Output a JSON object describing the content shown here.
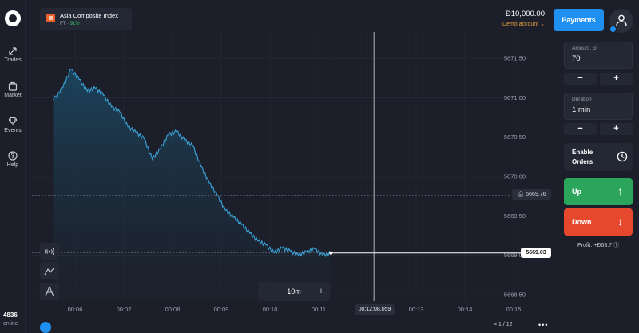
{
  "asset": {
    "name": "Asia Composite Index",
    "type": "FT",
    "payout": "91%"
  },
  "account": {
    "balance": "Đ10,000.00",
    "label": "Demo account",
    "payments_label": "Payments"
  },
  "nav": [
    {
      "label": "Trades",
      "icon": "trades-icon"
    },
    {
      "label": "Market",
      "icon": "market-icon"
    },
    {
      "label": "Events",
      "icon": "trophy-icon"
    },
    {
      "label": "Help",
      "icon": "help-icon"
    }
  ],
  "online": {
    "count": "4836",
    "label": "online"
  },
  "trade_panel": {
    "amount_label": "Amount, Đ",
    "amount_value": "70",
    "duration_label": "Duration",
    "duration_value": "1 min",
    "minus": "−",
    "plus": "+",
    "enable_orders_line1": "Enable",
    "enable_orders_line2": "Orders",
    "up_label": "Up",
    "down_label": "Down",
    "profit": "Profit: +Đ63.7"
  },
  "timeframe": {
    "value": "10m",
    "minus": "−",
    "plus": "+"
  },
  "markers": {
    "alert_price": "5669.76",
    "current_price": "5669.03",
    "cursor_time": "00:12:08.059"
  },
  "pager": {
    "value": "1 / 12"
  },
  "colors": {
    "accent": "#1f8ff0",
    "up": "#2ba55b",
    "down": "#e5482d",
    "line": "#3aa2d8",
    "demo": "#e8a23a"
  },
  "chart_data": {
    "type": "area",
    "series": [
      {
        "values": [
          [
            "00:05:33",
            5670.97
          ],
          [
            "00:05:45",
            5671.13
          ],
          [
            "00:05:55",
            5671.36
          ],
          [
            "00:06:05",
            5671.23
          ],
          [
            "00:06:15",
            5671.08
          ],
          [
            "00:06:25",
            5671.12
          ],
          [
            "00:06:35",
            5671.03
          ],
          [
            "00:06:45",
            5670.88
          ],
          [
            "00:06:55",
            5670.82
          ],
          [
            "00:07:05",
            5670.63
          ],
          [
            "00:07:15",
            5670.56
          ],
          [
            "00:07:25",
            5670.48
          ],
          [
            "00:07:35",
            5670.22
          ],
          [
            "00:07:45",
            5670.35
          ],
          [
            "00:07:55",
            5670.53
          ],
          [
            "00:08:05",
            5670.57
          ],
          [
            "00:08:15",
            5670.46
          ],
          [
            "00:08:25",
            5670.39
          ],
          [
            "00:08:35",
            5670.13
          ],
          [
            "00:08:45",
            5669.92
          ],
          [
            "00:08:55",
            5669.76
          ],
          [
            "00:09:05",
            5669.57
          ],
          [
            "00:09:15",
            5669.48
          ],
          [
            "00:09:25",
            5669.39
          ],
          [
            "00:09:35",
            5669.28
          ],
          [
            "00:09:45",
            5669.18
          ],
          [
            "00:09:55",
            5669.13
          ],
          [
            "00:10:05",
            5669.03
          ],
          [
            "00:10:15",
            5669.09
          ],
          [
            "00:10:25",
            5669.05
          ],
          [
            "00:10:35",
            5669.0
          ],
          [
            "00:10:45",
            5669.04
          ],
          [
            "00:10:55",
            5669.08
          ],
          [
            "00:11:05",
            5669.0
          ],
          [
            "00:11:15",
            5669.03
          ]
        ]
      }
    ],
    "x_ticks": [
      "00:06",
      "00:07",
      "00:08",
      "00:09",
      "00:10",
      "00:11",
      "00:12",
      "00:13",
      "00:14",
      "00:15"
    ],
    "y_ticks": [
      "5671.50",
      "5671.00",
      "5670.50",
      "5670.00",
      "5669.50",
      "5669.00",
      "5668.50"
    ],
    "ylim": [
      5668.5,
      5671.5
    ],
    "grid": true
  }
}
